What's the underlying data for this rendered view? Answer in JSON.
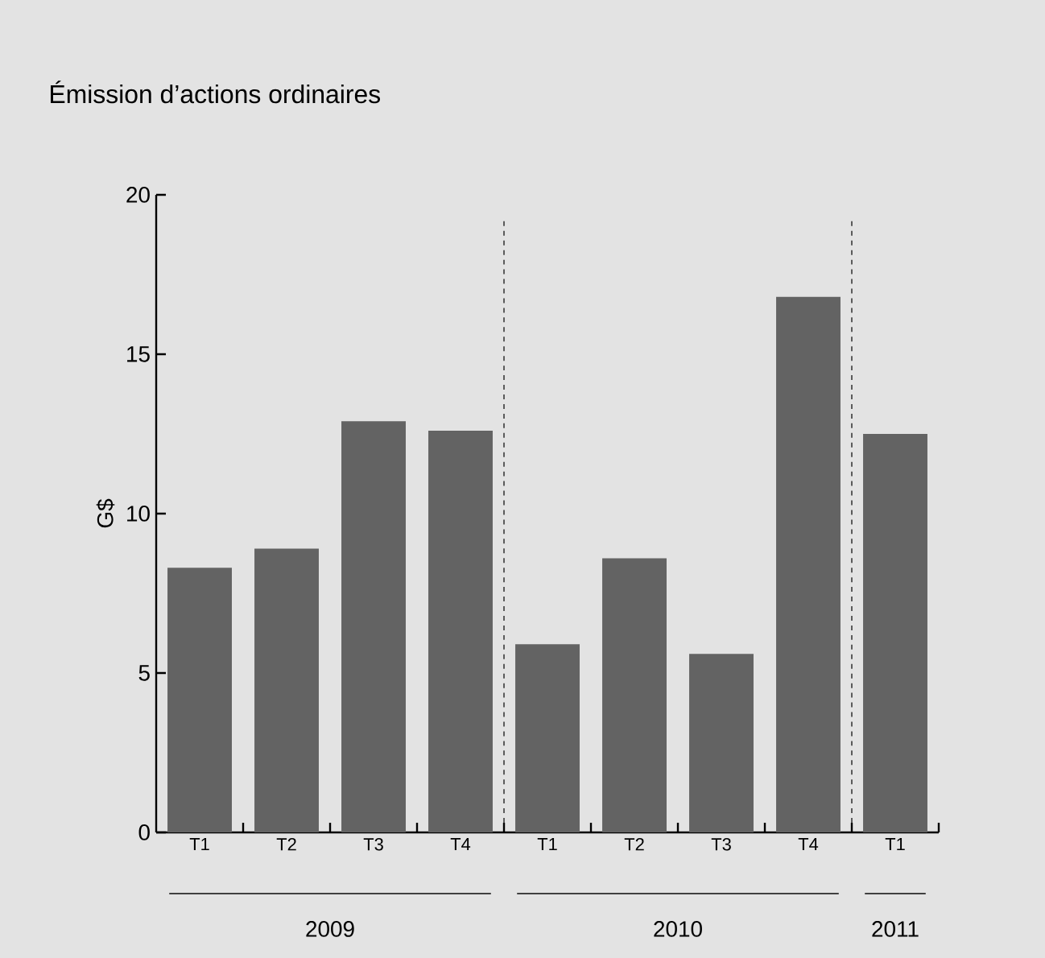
{
  "chart_data": {
    "type": "bar",
    "title": "Émission d’actions ordinaires",
    "ylabel": "G$",
    "categories": [
      "T1",
      "T2",
      "T3",
      "T4",
      "T1",
      "T2",
      "T3",
      "T4",
      "T1"
    ],
    "values": [
      8.3,
      8.9,
      12.9,
      12.6,
      5.9,
      8.6,
      5.6,
      16.8,
      12.5
    ],
    "color": "#636363",
    "ylim": [
      0,
      20
    ],
    "yticks": [
      0,
      5,
      10,
      15,
      20
    ],
    "annotations": [
      "2009",
      "2010",
      "2011"
    ]
  }
}
